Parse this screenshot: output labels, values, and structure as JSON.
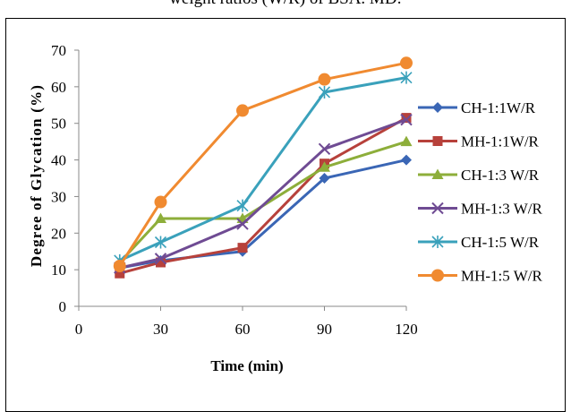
{
  "caption": "weight ratios (W/R) of BSA. MD:",
  "chart_data": {
    "type": "line",
    "xlabel": "Time (min)",
    "ylabel": "Degree of Glycation (%)",
    "xlim": [
      0,
      120
    ],
    "ylim": [
      0,
      70
    ],
    "xticks": [
      0,
      30,
      60,
      90,
      120
    ],
    "yticks": [
      0,
      10,
      20,
      30,
      40,
      50,
      60,
      70
    ],
    "grid": false,
    "legend_position": "right",
    "x": [
      15,
      30,
      60,
      90,
      120
    ],
    "series": [
      {
        "name": "CH-1:1W/R",
        "color": "#3a66b5",
        "marker": "diamond",
        "values": [
          10.5,
          12.5,
          15,
          35,
          40
        ]
      },
      {
        "name": "MH-1:1W/R",
        "color": "#b7413b",
        "marker": "square",
        "values": [
          9,
          12,
          16,
          39,
          51.5
        ]
      },
      {
        "name": "CH-1:3 W/R",
        "color": "#8dae3a",
        "marker": "triangle",
        "values": [
          12,
          24,
          24,
          38,
          45
        ]
      },
      {
        "name": "MH-1:3 W/R",
        "color": "#6f4b93",
        "marker": "x",
        "values": [
          10.5,
          13,
          22.5,
          43,
          51
        ]
      },
      {
        "name": "CH-1:5 W/R",
        "color": "#3aa1bb",
        "marker": "asterisk",
        "values": [
          12.5,
          17.5,
          27.5,
          58.5,
          62.5
        ]
      },
      {
        "name": "MH-1:5 W/R",
        "color": "#f08a30",
        "marker": "circle",
        "values": [
          11,
          28.5,
          53.5,
          62,
          66.5
        ]
      }
    ]
  }
}
